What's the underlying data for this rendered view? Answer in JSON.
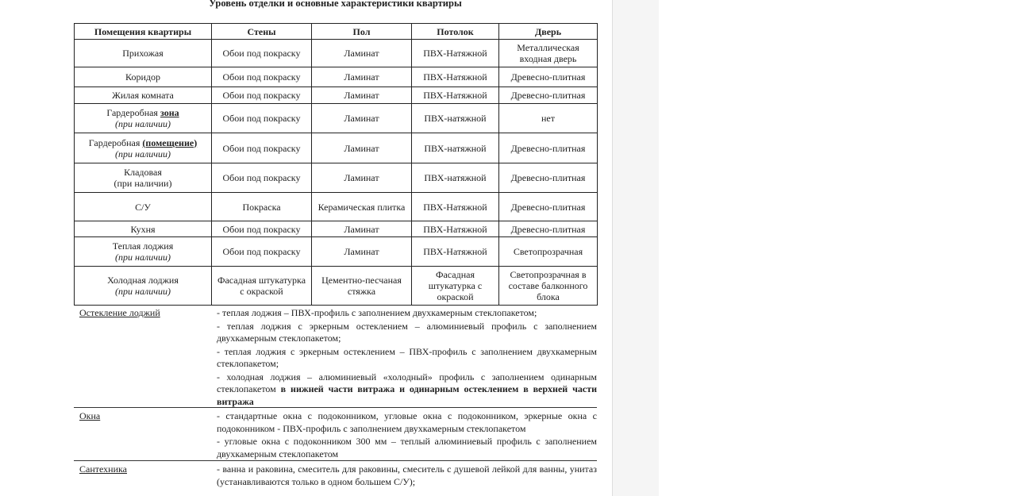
{
  "title": "Уровень отделки и основные характеристики квартиры",
  "table": {
    "headers": [
      "Помещения квартиры",
      "Стены",
      "Пол",
      "Потолок",
      "Дверь"
    ],
    "rows": [
      {
        "room": "Прихожая",
        "emph": "",
        "note": "",
        "note_italic": false,
        "walls": "Обои под покраску",
        "floor": "Ламинат",
        "ceiling": "ПВХ-Натяжной",
        "door": "Металлическая входная дверь"
      },
      {
        "room": "Коридор",
        "emph": "",
        "note": "",
        "note_italic": false,
        "walls": "Обои под покраску",
        "floor": "Ламинат",
        "ceiling": "ПВХ-Натяжной",
        "door": "Древесно-плитная"
      },
      {
        "room": "Жилая комната",
        "emph": "",
        "note": "",
        "note_italic": false,
        "walls": "Обои под покраску",
        "floor": "Ламинат",
        "ceiling": "ПВХ-Натяжной",
        "door": "Древесно-плитная"
      },
      {
        "room": "Гардеробная ",
        "emph": "зона",
        "note": "(при наличии)",
        "note_italic": true,
        "walls": "Обои под покраску",
        "floor": "Ламинат",
        "ceiling": "ПВХ-натяжной",
        "door": "нет"
      },
      {
        "room": "Гардеробная ",
        "emph": "(помещение)",
        "note": "(при наличии)",
        "note_italic": true,
        "walls": "Обои под покраску",
        "floor": "Ламинат",
        "ceiling": "ПВХ-натяжной",
        "door": "Древесно-плитная"
      },
      {
        "room": "Кладовая",
        "emph": "",
        "note": "(при наличии)",
        "note_italic": false,
        "walls": "Обои под покраску",
        "floor": "Ламинат",
        "ceiling": "ПВХ-натяжной",
        "door": "Древесно-плитная"
      },
      {
        "room": "С/У",
        "emph": "",
        "note": "",
        "note_italic": false,
        "walls": "Покраска",
        "floor": "Керамическая плитка",
        "ceiling": "ПВХ-Натяжной",
        "door": "Древесно-плитная"
      },
      {
        "room": "Кухня",
        "emph": "",
        "note": "",
        "note_italic": false,
        "walls": "Обои под покраску",
        "floor": "Ламинат",
        "ceiling": "ПВХ-Натяжной",
        "door": "Древесно-плитная"
      },
      {
        "room": "Теплая лоджия",
        "emph": "",
        "note": "(при наличии)",
        "note_italic": true,
        "walls": "Обои под покраску",
        "floor": "Ламинат",
        "ceiling": "ПВХ-Натяжной",
        "door": "Светопрозрачная"
      },
      {
        "room": "Холодная лоджия",
        "emph": "",
        "note": "(при наличии)",
        "note_italic": true,
        "walls": "Фасадная штукатурка с окраской",
        "floor": "Цементно-песчаная стяжка",
        "ceiling": "Фасадная штукатурка с окраской",
        "door": "Светопрозрачная в составе балконного блока"
      }
    ]
  },
  "sections": {
    "glazing": {
      "label": "Остекление лоджий",
      "items": [
        "- теплая лоджия – ПВХ-профиль с заполнением двухкамерным стеклопакетом;",
        "- теплая лоджия с эркерным остеклением – алюминиевый профиль с заполнением двухкамерным стеклопакетом;",
        "- теплая лоджия с эркерным остеклением – ПВХ-профиль с заполнением двухкамерным стеклопакетом;"
      ],
      "last_item": "- холодная лоджия – алюминиевый «холодный» профиль с заполнением одинарным стеклопакетом",
      "last_item_bold": " в нижней части витража и одинарным остеклением в верхней части витража"
    },
    "windows": {
      "label": "Окна",
      "items": [
        "- стандартные окна с подоконником, угловые окна с подоконником, эркерные окна с подоконником - ПВХ-профиль с заполнением двухкамерным стеклопакетом",
        "- угловые окна с подоконником 300 мм – теплый алюминиевый профиль с заполнением двухкамерным стеклопакетом"
      ]
    },
    "plumbing": {
      "label": "Сантехника",
      "items": [
        "- ванна и раковина, смеситель для раковины, смеситель с душевой лейкой для ванны, унитаз (устанавливаются только в одном большем С/У);"
      ]
    }
  }
}
